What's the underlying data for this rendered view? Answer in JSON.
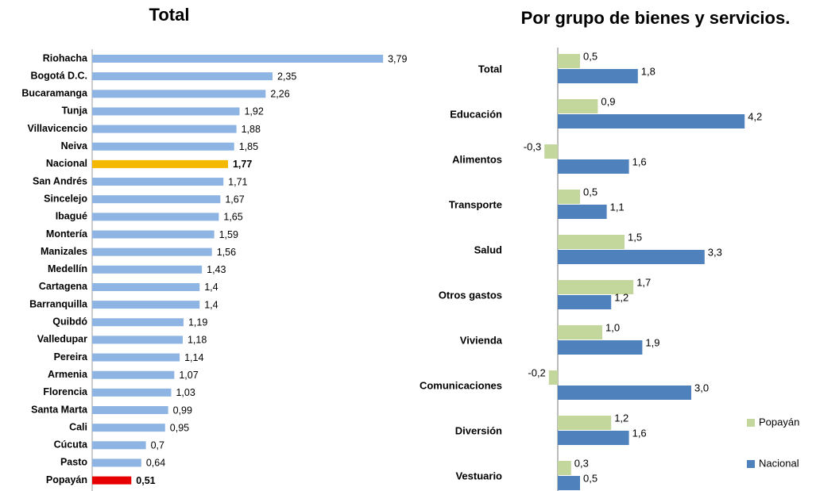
{
  "chart_data": [
    {
      "type": "bar",
      "orientation": "horizontal",
      "title": "Total",
      "categories": [
        "Riohacha",
        "Bogotá D.C.",
        "Bucaramanga",
        "Tunja",
        "Villavicencio",
        "Neiva",
        "Nacional",
        "San Andrés",
        "Sincelejo",
        "Ibagué",
        "Montería",
        "Manizales",
        "Medellín",
        "Cartagena",
        "Barranquilla",
        "Quibdó",
        "Valledupar",
        "Pereira",
        "Armenia",
        "Florencia",
        "Santa Marta",
        "Cali",
        "Cúcuta",
        "Pasto",
        "Popayán"
      ],
      "values": [
        3.79,
        2.35,
        2.26,
        1.92,
        1.88,
        1.85,
        1.77,
        1.71,
        1.67,
        1.65,
        1.59,
        1.56,
        1.43,
        1.4,
        1.4,
        1.19,
        1.18,
        1.14,
        1.07,
        1.03,
        0.99,
        0.95,
        0.7,
        0.64,
        0.51
      ],
      "value_labels": [
        "3,79",
        "2,35",
        "2,26",
        "1,92",
        "1,88",
        "1,85",
        "1,77",
        "1,71",
        "1,67",
        "1,65",
        "1,59",
        "1,56",
        "1,43",
        "1,4",
        "1,4",
        "1,19",
        "1,18",
        "1,14",
        "1,07",
        "1,03",
        "0,99",
        "0,95",
        "0,7",
        "0,64",
        "0,51"
      ],
      "color": "#8db4e2",
      "colors": [
        "#8db4e2",
        "#8db4e2",
        "#8db4e2",
        "#8db4e2",
        "#8db4e2",
        "#8db4e2",
        "#f5b800",
        "#8db4e2",
        "#8db4e2",
        "#8db4e2",
        "#8db4e2",
        "#8db4e2",
        "#8db4e2",
        "#8db4e2",
        "#8db4e2",
        "#8db4e2",
        "#8db4e2",
        "#8db4e2",
        "#8db4e2",
        "#8db4e2",
        "#8db4e2",
        "#8db4e2",
        "#8db4e2",
        "#8db4e2",
        "#e60000"
      ]
    },
    {
      "type": "bar",
      "orientation": "horizontal",
      "title": "Por grupo de bienes y servicios.",
      "categories": [
        "Total",
        "Educación",
        "Alimentos",
        "Transporte",
        "Salud",
        "Otros gastos",
        "Vivienda",
        "Comunicaciones",
        "Diversión",
        "Vestuario"
      ],
      "series": [
        {
          "name": "Popayán",
          "color": "#c3d69b",
          "values": [
            0.5,
            0.9,
            -0.3,
            0.5,
            1.5,
            1.7,
            1.0,
            -0.2,
            1.2,
            0.3
          ],
          "value_labels": [
            "0,5",
            "0,9",
            "-0,3",
            "0,5",
            "1,5",
            "1,7",
            "1,0",
            "-0,2",
            "1,2",
            "0,3"
          ]
        },
        {
          "name": "Nacional",
          "color": "#4f81bd",
          "values": [
            1.8,
            4.2,
            1.6,
            1.1,
            3.3,
            1.2,
            1.9,
            3.0,
            1.6,
            0.5
          ],
          "value_labels": [
            "1,8",
            "4,2",
            "1,6",
            "1,1",
            "3,3",
            "1,2",
            "1,9",
            "3,0",
            "1,6",
            "0,5"
          ]
        }
      ],
      "legend": "right"
    }
  ]
}
